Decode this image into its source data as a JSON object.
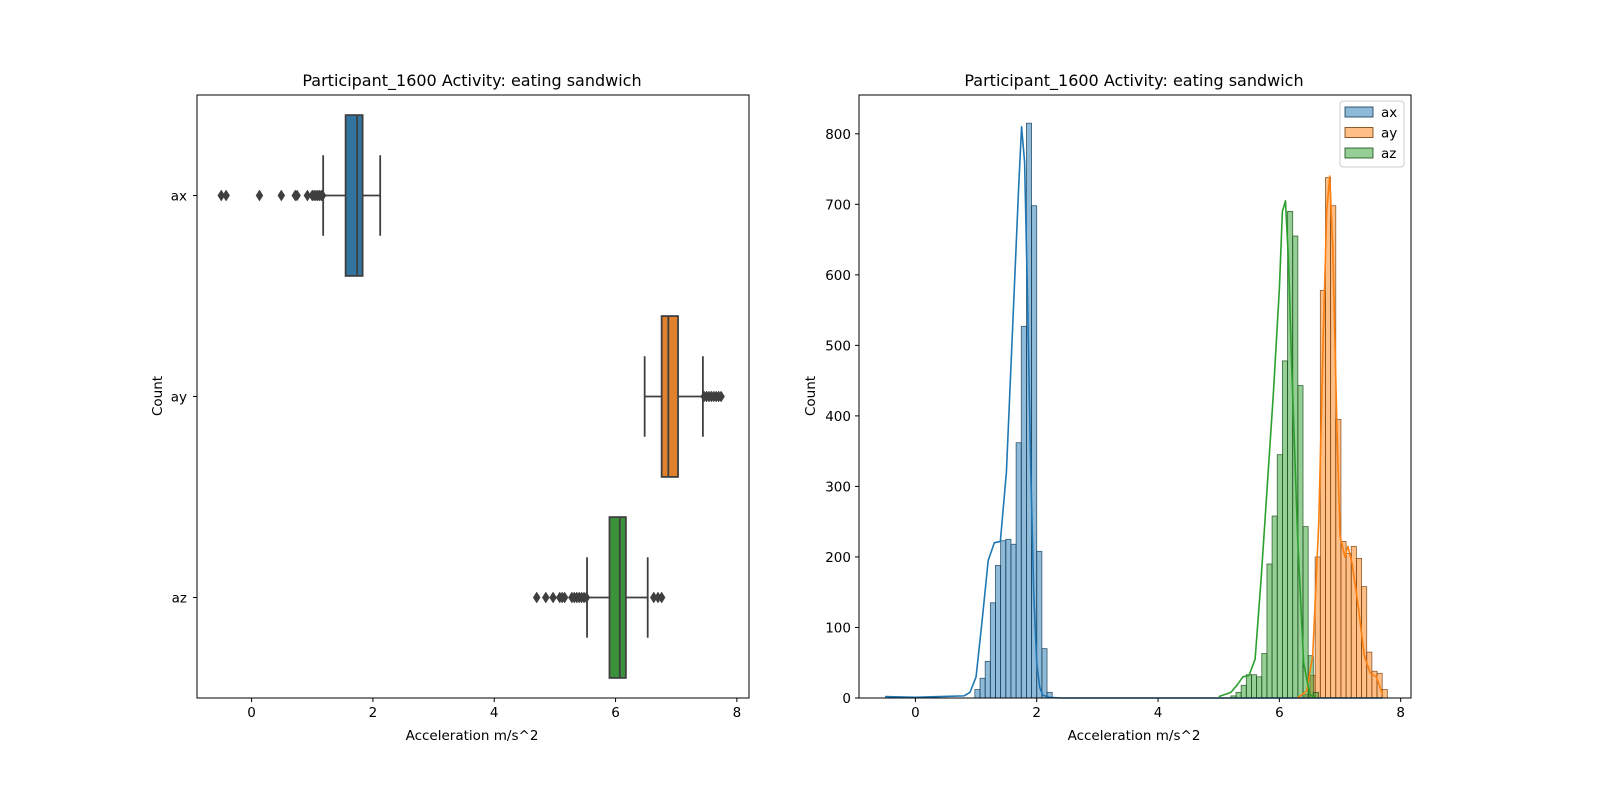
{
  "chart_data": [
    {
      "type": "box",
      "title": "Participant_1600  Activity: eating sandwich",
      "xlabel": "Acceleration m/s^2",
      "ylabel": "Count",
      "xlim": [
        -0.9,
        8.2
      ],
      "xticks": [
        "0",
        "2",
        "4",
        "6",
        "8"
      ],
      "grid": false,
      "categories": [
        "ax",
        "ay",
        "az"
      ],
      "colors": {
        "ax": "#3274a1",
        "ay": "#e1812c",
        "az": "#3a923a"
      },
      "series": [
        {
          "category": "ax",
          "whisker_low": 1.18,
          "q1": 1.55,
          "median": 1.74,
          "q3": 1.83,
          "whisker_high": 2.12,
          "outliers": [
            -0.5,
            -0.42,
            0.13,
            0.49,
            0.72,
            0.75,
            0.92,
            1.0,
            1.03,
            1.06,
            1.09,
            1.12,
            1.15,
            1.17
          ]
        },
        {
          "category": "ay",
          "whisker_low": 6.48,
          "q1": 6.76,
          "median": 6.87,
          "q3": 7.03,
          "whisker_high": 7.44,
          "outliers": [
            7.46,
            7.5,
            7.54,
            7.58,
            7.62,
            7.66,
            7.7,
            7.74
          ]
        },
        {
          "category": "az",
          "whisker_low": 5.53,
          "q1": 5.9,
          "median": 6.07,
          "q3": 6.17,
          "whisker_high": 6.53,
          "outliers": [
            4.7,
            4.85,
            4.97,
            5.08,
            5.12,
            5.16,
            5.28,
            5.32,
            5.36,
            5.4,
            5.44,
            5.48,
            5.52,
            6.63,
            6.7,
            6.76
          ]
        }
      ]
    },
    {
      "type": "histogram",
      "title": "Participant_1600  Activity: eating sandwich",
      "xlabel": "Acceleration m/s^2",
      "ylabel": "Count",
      "xlim": [
        -0.93,
        8.17
      ],
      "ylim": [
        0,
        855
      ],
      "xticks": [
        "0",
        "2",
        "4",
        "6",
        "8"
      ],
      "yticks": [
        "0",
        "100",
        "200",
        "300",
        "400",
        "500",
        "600",
        "700",
        "800"
      ],
      "bin_width": 0.085,
      "legend": {
        "position": "top-right",
        "entries": [
          "ax",
          "ay",
          "az"
        ]
      },
      "grid": false,
      "series": [
        {
          "name": "ax",
          "color": "#1f77b4",
          "bin_start": 0.98,
          "counts": [
            12,
            28,
            52,
            135,
            188,
            223,
            225,
            218,
            362,
            527,
            815,
            698,
            208,
            70,
            8
          ],
          "kde_x": [
            -0.5,
            0.0,
            0.4,
            0.8,
            0.9,
            1.0,
            1.1,
            1.2,
            1.3,
            1.4,
            1.5,
            1.6,
            1.7,
            1.75,
            1.8,
            1.85,
            1.9,
            1.95,
            2.0,
            2.05,
            2.1,
            2.2,
            2.4,
            3.0,
            4.0,
            5.0,
            6.0,
            6.5,
            7.0,
            7.7
          ],
          "kde_y": [
            2,
            1,
            2,
            3,
            8,
            30,
            110,
            195,
            220,
            222,
            320,
            520,
            720,
            810,
            760,
            560,
            330,
            150,
            50,
            15,
            4,
            1,
            0,
            0,
            0,
            0,
            0,
            0,
            0,
            0
          ]
        },
        {
          "name": "ay",
          "color": "#ff7f0e",
          "bin_start": 6.42,
          "counts": [
            5,
            32,
            200,
            578,
            738,
            698,
            395,
            222,
            205,
            215,
            198,
            158,
            65,
            38,
            35,
            12
          ],
          "kde_x": [
            6.3,
            6.45,
            6.55,
            6.65,
            6.72,
            6.78,
            6.83,
            6.88,
            6.95,
            7.0,
            7.08,
            7.13,
            7.2,
            7.3,
            7.4,
            7.5,
            7.6,
            7.7
          ],
          "kde_y": [
            0,
            10,
            60,
            250,
            500,
            690,
            740,
            640,
            380,
            230,
            200,
            215,
            190,
            130,
            60,
            35,
            30,
            5
          ]
        },
        {
          "name": "az",
          "color": "#2ca02c",
          "bin_start": 5.2,
          "counts": [
            3,
            8,
            18,
            33,
            33,
            30,
            63,
            190,
            258,
            345,
            478,
            690,
            655,
            443,
            243,
            60,
            8
          ],
          "kde_x": [
            5.0,
            5.2,
            5.3,
            5.4,
            5.5,
            5.6,
            5.7,
            5.8,
            5.9,
            6.0,
            6.05,
            6.1,
            6.15,
            6.2,
            6.3,
            6.4,
            6.5,
            6.6
          ],
          "kde_y": [
            2,
            8,
            18,
            30,
            32,
            55,
            170,
            300,
            430,
            580,
            690,
            705,
            620,
            480,
            230,
            50,
            5,
            0
          ]
        }
      ]
    }
  ]
}
